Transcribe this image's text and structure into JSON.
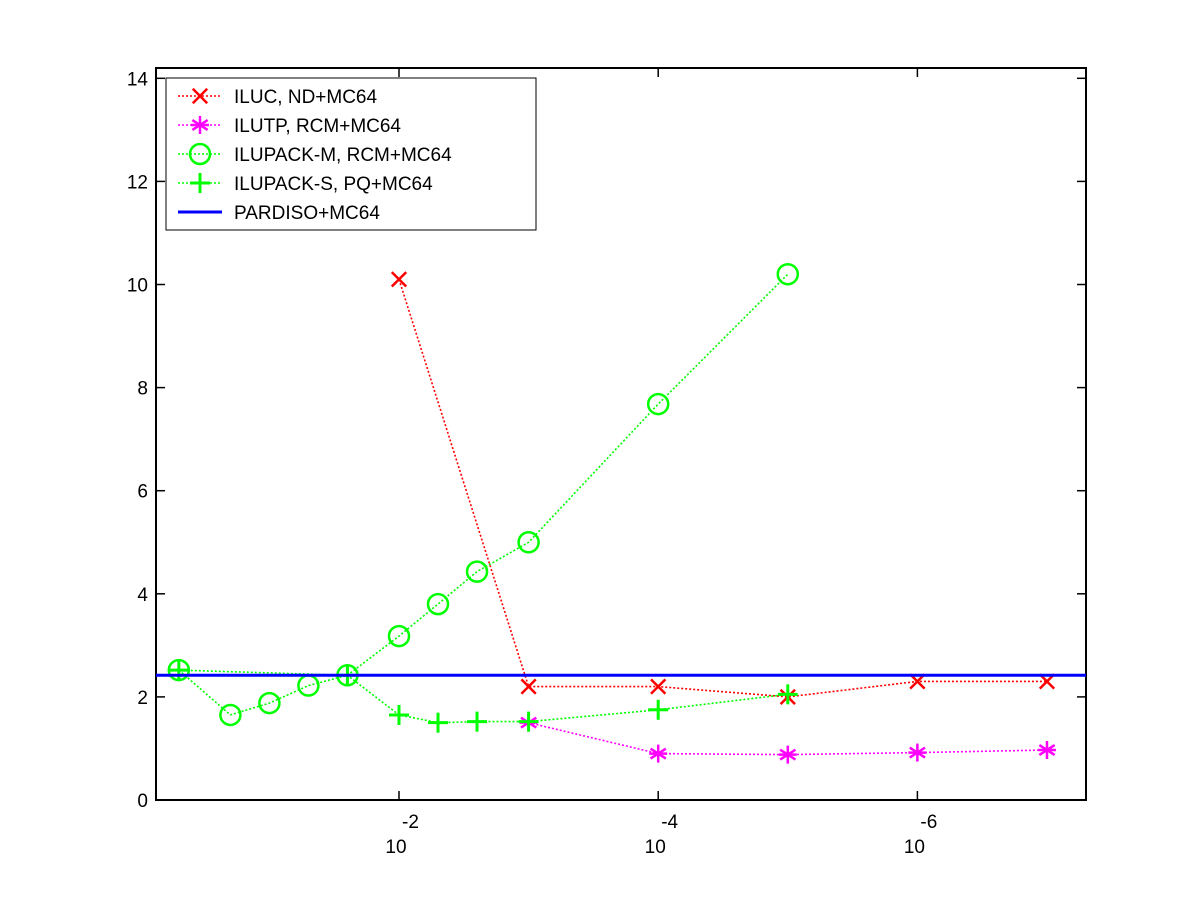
{
  "chart_data": {
    "type": "line",
    "title": "",
    "xlabel": "",
    "ylabel": "",
    "x_scale": "log",
    "x_reversed": true,
    "xlim": [
      0.75,
      5e-08
    ],
    "ylim": [
      0,
      14.2
    ],
    "grid": false,
    "x_tick_labels": [
      {
        "value": 0.01,
        "base": "10",
        "exponent": "-2"
      },
      {
        "value": 0.0001,
        "base": "10",
        "exponent": "-4"
      },
      {
        "value": 1e-06,
        "base": "10",
        "exponent": "-6"
      }
    ],
    "y_ticks": [
      0,
      2,
      4,
      6,
      8,
      10,
      12,
      14
    ],
    "legend": {
      "position": "top-left",
      "entries": [
        {
          "label": "ILUC,  ND+MC64",
          "color": "#ff0000",
          "marker": "x",
          "line": "dotted"
        },
        {
          "label": "ILUTP, RCM+MC64",
          "color": "#ff00ff",
          "marker": "asterisk",
          "line": "dotted"
        },
        {
          "label": "ILUPACK-M, RCM+MC64",
          "color": "#00ff00",
          "marker": "circle",
          "line": "dotted"
        },
        {
          "label": "ILUPACK-S, PQ+MC64",
          "color": "#00ff00",
          "marker": "plus",
          "line": "dotted"
        },
        {
          "label": "PARDISO+MC64",
          "color": "#0000ff",
          "marker": "none",
          "line": "solid"
        }
      ]
    },
    "series": [
      {
        "name": "ILUC,  ND+MC64",
        "color": "#ff0000",
        "marker": "x",
        "line": "dotted",
        "points": [
          [
            0.01,
            10.1
          ],
          [
            0.001,
            2.2
          ],
          [
            0.0001,
            2.2
          ],
          [
            1e-05,
            2.0
          ],
          [
            1e-06,
            2.3
          ],
          [
            1e-07,
            2.3
          ]
        ]
      },
      {
        "name": "ILUTP, RCM+MC64",
        "color": "#ff00ff",
        "marker": "asterisk",
        "line": "dotted",
        "points": [
          [
            0.001,
            1.5
          ],
          [
            0.0001,
            0.9
          ],
          [
            1e-05,
            0.88
          ],
          [
            1e-06,
            0.92
          ],
          [
            1e-07,
            0.97
          ]
        ]
      },
      {
        "name": "ILUPACK-M, RCM+MC64",
        "color": "#00ff00",
        "marker": "circle",
        "line": "dotted",
        "points": [
          [
            0.5,
            2.52
          ],
          [
            0.2,
            1.65
          ],
          [
            0.1,
            1.88
          ],
          [
            0.05,
            2.22
          ],
          [
            0.025,
            2.42
          ],
          [
            0.01,
            3.18
          ],
          [
            0.005,
            3.8
          ],
          [
            0.0025,
            4.43
          ],
          [
            0.001,
            5.0
          ],
          [
            0.0001,
            7.68
          ],
          [
            1e-05,
            10.2
          ]
        ]
      },
      {
        "name": "ILUPACK-S, PQ+MC64",
        "color": "#00ff00",
        "marker": "plus",
        "line": "dotted",
        "points": [
          [
            0.5,
            2.52
          ],
          [
            0.025,
            2.42
          ],
          [
            0.01,
            1.65
          ],
          [
            0.005,
            1.5
          ],
          [
            0.0025,
            1.52
          ],
          [
            0.001,
            1.52
          ],
          [
            0.0001,
            1.75
          ],
          [
            1e-05,
            2.05
          ]
        ]
      },
      {
        "name": "PARDISO+MC64",
        "color": "#0000ff",
        "marker": "none",
        "line": "solid",
        "points": [
          [
            0.75,
            2.42
          ],
          [
            5e-08,
            2.42
          ]
        ]
      }
    ]
  }
}
